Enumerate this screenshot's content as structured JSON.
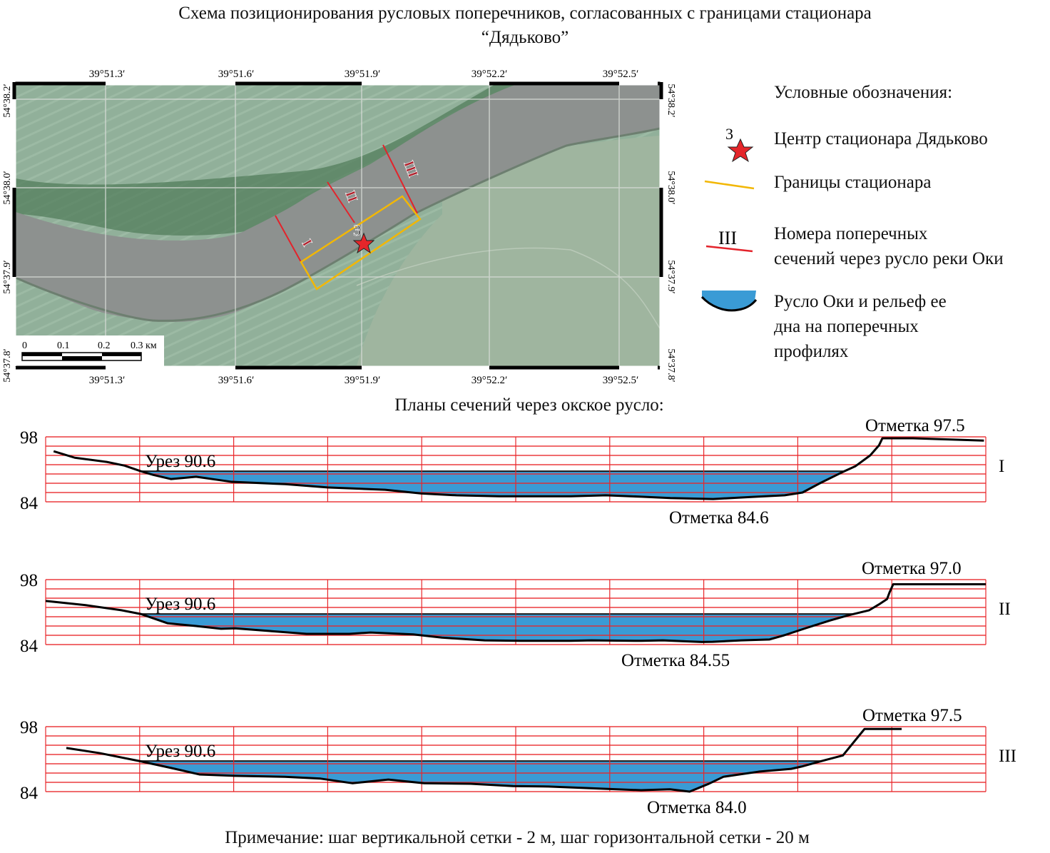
{
  "title_line1": "Схема позиционирования русловых поперечников, согласованных с границами стационара",
  "title_line2": "“Дядьково”",
  "map": {
    "lon_ticks": [
      "39°51.3′",
      "39°51.6′",
      "39°51.9′",
      "39°52.2′",
      "39°52.5′"
    ],
    "lat_ticks": [
      "54°38.2′",
      "54°38.0′",
      "54°37.9′",
      "54°37.8′"
    ],
    "scale_labels": [
      "0",
      "0.1",
      "0.2",
      "0.3 км"
    ],
    "section_labels": [
      "I",
      "II",
      "III"
    ],
    "station_number": "3",
    "colors": {
      "land": "#8fae98",
      "river": "#8d918f",
      "section": "#e3232b",
      "boundary": "#f2b705",
      "star": "#e5262a"
    }
  },
  "legend": {
    "heading": "Условные обозначения:",
    "items": [
      {
        "icon": "star-icon",
        "number": "3",
        "label": "Центр стационара Дядьково"
      },
      {
        "icon": "yellow-line-icon",
        "label": "Границы стационара"
      },
      {
        "icon": "red-line-icon",
        "number": "III",
        "label_lines": [
          "Номера поперечных",
          "сечений через русло реки Оки"
        ]
      },
      {
        "icon": "channel-profile-icon",
        "label_lines": [
          "Русло Оки и рельеф ее",
          "дна на поперечных",
          "профилях"
        ]
      }
    ]
  },
  "sections_heading": "Планы сечений через окское русло:",
  "chart_data": {
    "type": "area",
    "y_ticks": [
      "98",
      "84"
    ],
    "ylim": [
      84,
      98
    ],
    "xlim": [
      0,
      200
    ],
    "grid": {
      "vertical_step_m": 2,
      "horizontal_step_m": 20
    },
    "water_color": "#3a9bd5",
    "grid_color": "#e8262a",
    "profiles": [
      {
        "name": "I",
        "water_label": "Урез 90.6",
        "water_level": 90.6,
        "high_label": "Отметка 97.5",
        "low_label": "Отметка 84.6",
        "points": [
          [
            1.7,
            94.9
          ],
          [
            6.2,
            93.5
          ],
          [
            13,
            92.6
          ],
          [
            16.8,
            91.8
          ],
          [
            20.2,
            90.6
          ],
          [
            22.9,
            89.8
          ],
          [
            26.7,
            88.9
          ],
          [
            32,
            89.4
          ],
          [
            39.6,
            88.3
          ],
          [
            51,
            87.8
          ],
          [
            60,
            87.1
          ],
          [
            72.2,
            86.6
          ],
          [
            79.8,
            85.8
          ],
          [
            87.4,
            85.4
          ],
          [
            96.5,
            85.2
          ],
          [
            111.7,
            85.2
          ],
          [
            119.2,
            85.4
          ],
          [
            126.8,
            85.1
          ],
          [
            132.9,
            84.8
          ],
          [
            142,
            84.6
          ],
          [
            151.1,
            85.1
          ],
          [
            157.2,
            85.4
          ],
          [
            161,
            86
          ],
          [
            164.7,
            88
          ],
          [
            169.3,
            90.3
          ],
          [
            172.3,
            91.7
          ],
          [
            175.4,
            94
          ],
          [
            177.3,
            96.2
          ],
          [
            178,
            97.7
          ],
          [
            184.5,
            97.7
          ],
          [
            199.6,
            97.2
          ]
        ]
      },
      {
        "name": "II",
        "water_label": "Урез 90.6",
        "water_level": 90.6,
        "high_label": "Отметка 97.0",
        "low_label": "Отметка 84.55",
        "points": [
          [
            0,
            93.4
          ],
          [
            8.5,
            92.5
          ],
          [
            16.1,
            91.4
          ],
          [
            20.2,
            90.6
          ],
          [
            25.9,
            88.6
          ],
          [
            32,
            88
          ],
          [
            37.3,
            87.4
          ],
          [
            40.3,
            87.5
          ],
          [
            47.9,
            86.9
          ],
          [
            55.5,
            86.3
          ],
          [
            64.6,
            86.3
          ],
          [
            69.1,
            86.6
          ],
          [
            78.2,
            86.2
          ],
          [
            84.3,
            85.5
          ],
          [
            93.4,
            84.9
          ],
          [
            101,
            84.8
          ],
          [
            111.6,
            84.8
          ],
          [
            116.1,
            84.9
          ],
          [
            126.7,
            84.8
          ],
          [
            131.3,
            84.9
          ],
          [
            139.6,
            84.55
          ],
          [
            141.9,
            84.6
          ],
          [
            148,
            84.9
          ],
          [
            154,
            85.1
          ],
          [
            157.1,
            86
          ],
          [
            161.6,
            87.5
          ],
          [
            166.9,
            89.2
          ],
          [
            170.7,
            90.3
          ],
          [
            175.2,
            91.4
          ],
          [
            177.5,
            92.8
          ],
          [
            179,
            93.8
          ],
          [
            179.5,
            95.2
          ],
          [
            180.3,
            97
          ],
          [
            200,
            97
          ]
        ]
      },
      {
        "name": "III",
        "water_label": "Урез 90.6",
        "water_level": 90.6,
        "high_label": "Отметка 97.5",
        "low_label": "Отметка 84.0",
        "points": [
          [
            4.4,
            93.4
          ],
          [
            11.5,
            92.3
          ],
          [
            19.9,
            90.6
          ],
          [
            26.7,
            89.1
          ],
          [
            32.7,
            87.7
          ],
          [
            40.3,
            87.4
          ],
          [
            50.9,
            87.2
          ],
          [
            58.5,
            86.8
          ],
          [
            65.3,
            85.8
          ],
          [
            72.9,
            86.6
          ],
          [
            80.5,
            85.8
          ],
          [
            90.4,
            85.7
          ],
          [
            99.4,
            85.2
          ],
          [
            107,
            85.1
          ],
          [
            119.2,
            84.6
          ],
          [
            126.7,
            84.3
          ],
          [
            132.8,
            84.5
          ],
          [
            137,
            84.0
          ],
          [
            141.1,
            85.7
          ],
          [
            144.2,
            87.2
          ],
          [
            151.7,
            88.3
          ],
          [
            158.6,
            88.9
          ],
          [
            160.8,
            89.4
          ],
          [
            166.2,
            90.9
          ],
          [
            169.6,
            91.8
          ],
          [
            174.2,
            97.5
          ],
          [
            182.1,
            97.5
          ]
        ]
      }
    ]
  },
  "note": "Примечание: шаг вертикальной сетки - 2 м, шаг горизонтальной сетки - 20 м"
}
